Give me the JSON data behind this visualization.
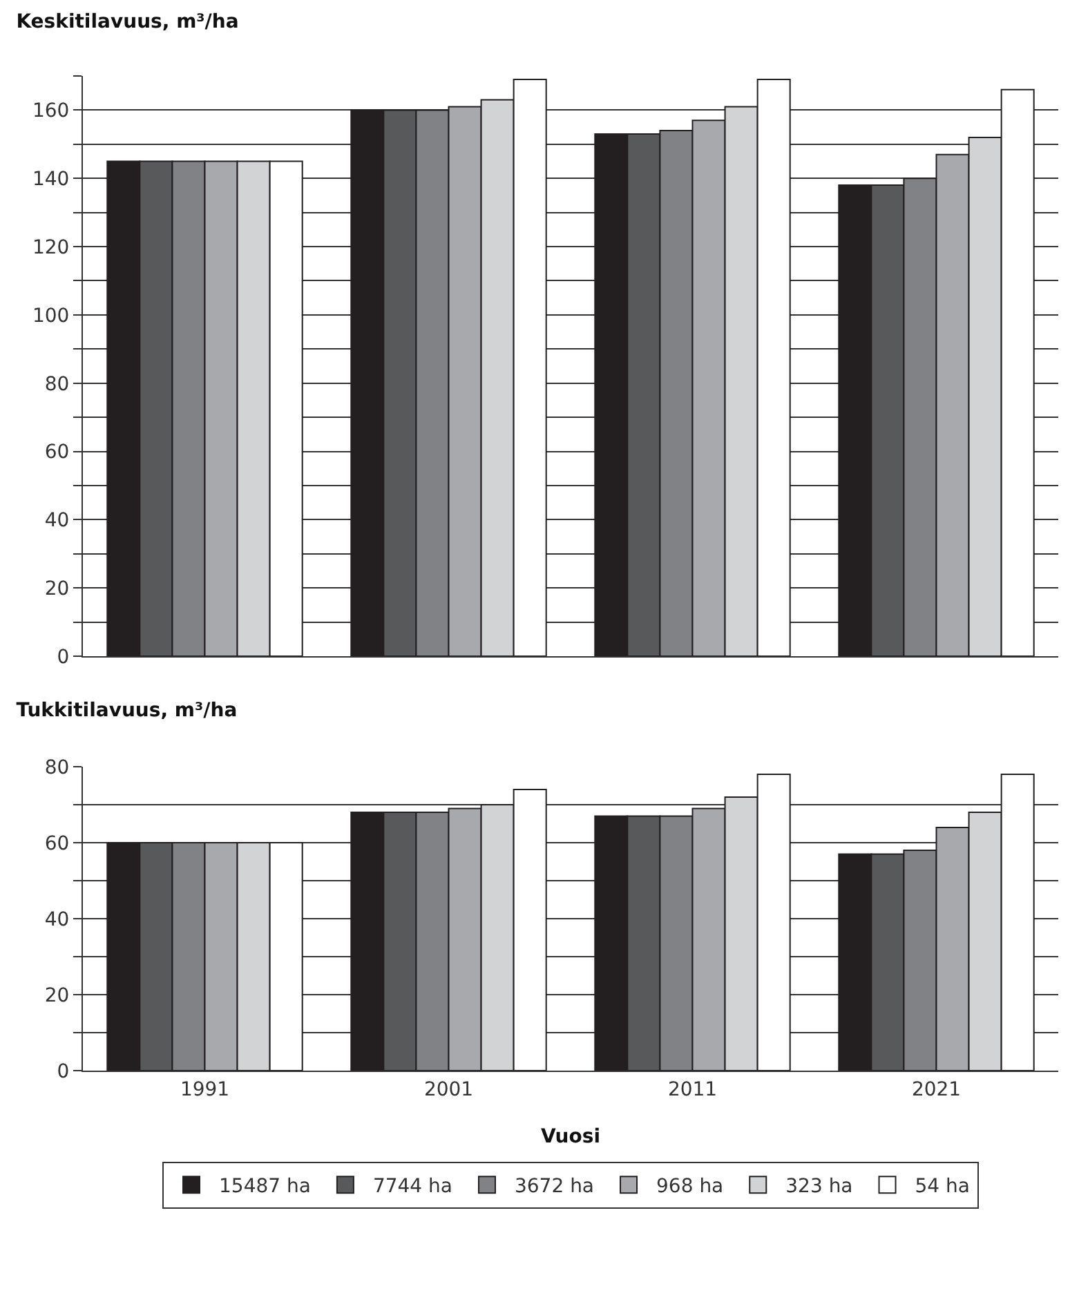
{
  "chart_data": [
    {
      "type": "bar",
      "title": "Keskitilavuus, m³/ha",
      "categories": [
        "1991",
        "2001",
        "2011",
        "2021"
      ],
      "ylim": [
        0,
        170
      ],
      "yticks": [
        0,
        {
          "value": 10,
          "label": null
        },
        20,
        {
          "value": 30,
          "label": null
        },
        40,
        {
          "value": 50,
          "label": null
        },
        60,
        {
          "value": 70,
          "label": null
        },
        80,
        {
          "value": 90,
          "label": null
        },
        100,
        {
          "value": 110,
          "label": null
        },
        120,
        {
          "value": 130,
          "label": null
        },
        140,
        {
          "value": 150,
          "label": null
        },
        160,
        {
          "value": 170,
          "label": null
        }
      ],
      "grid": "y",
      "tick_labels": "y",
      "legend": false,
      "series": [
        {
          "color": "#231f20",
          "values": [
            145,
            160,
            153,
            138
          ]
        },
        {
          "color": "#58595b",
          "values": [
            145,
            160,
            153,
            138
          ]
        },
        {
          "color": "#808285",
          "values": [
            145,
            160,
            154,
            140
          ]
        },
        {
          "color": "#a7a9ac",
          "values": [
            145,
            161,
            157,
            147
          ]
        },
        {
          "color": "#d1d3d4",
          "values": [
            145,
            163,
            161,
            152
          ]
        },
        {
          "color": "#ffffff",
          "values": [
            145,
            169,
            169,
            166
          ]
        }
      ]
    },
    {
      "type": "bar",
      "title": "Tukkitilavuus, m³/ha",
      "xlabel": "Vuosi",
      "categories": [
        "1991",
        "2001",
        "2011",
        "2021"
      ],
      "ylim": [
        0,
        80
      ],
      "yticks": [
        0,
        {
          "value": 10,
          "label": null
        },
        20,
        {
          "value": 30,
          "label": null
        },
        40,
        {
          "value": 50,
          "label": null
        },
        60,
        {
          "value": 70,
          "label": null
        },
        80
      ],
      "grid": "y",
      "legend": "bottom",
      "series": [
        {
          "name": "15487 ha",
          "color": "#231f20",
          "values": [
            60,
            68,
            67,
            57
          ]
        },
        {
          "name": "7744 ha",
          "color": "#58595b",
          "values": [
            60,
            68,
            67,
            57
          ]
        },
        {
          "name": "3672 ha",
          "color": "#808285",
          "values": [
            60,
            68,
            67,
            58
          ]
        },
        {
          "name": "968 ha",
          "color": "#a7a9ac",
          "values": [
            60,
            69,
            69,
            64
          ]
        },
        {
          "name": "323 ha",
          "color": "#d1d3d4",
          "values": [
            60,
            70,
            72,
            68
          ]
        },
        {
          "name": "54 ha",
          "color": "#ffffff",
          "values": [
            60,
            74,
            78,
            78
          ]
        }
      ]
    }
  ]
}
